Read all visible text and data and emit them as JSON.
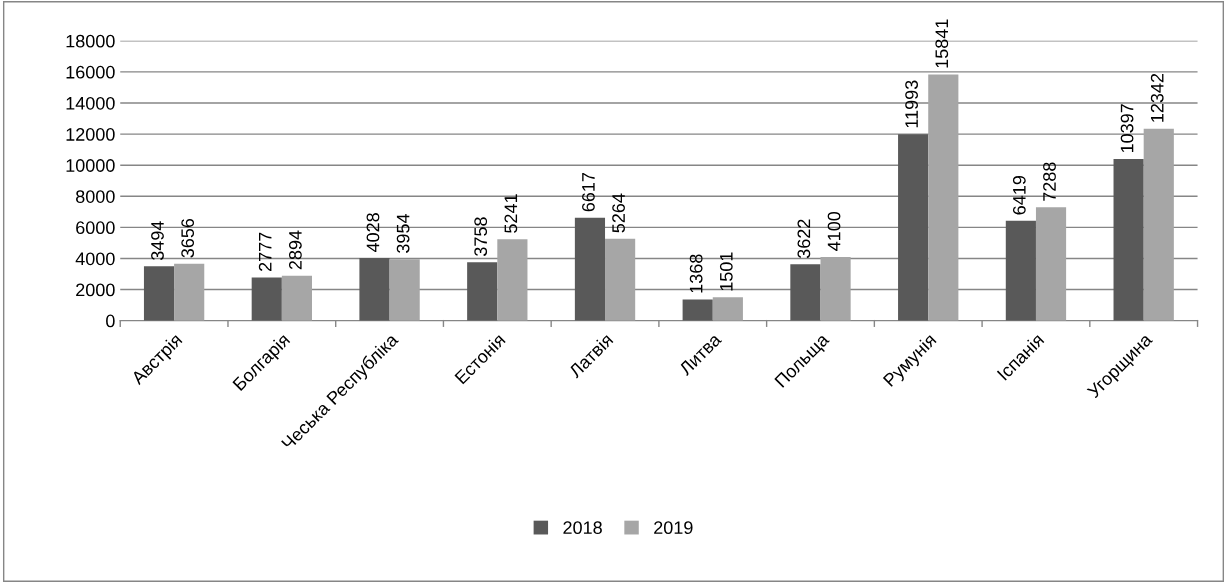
{
  "chart_data": {
    "type": "bar",
    "categories": [
      "Австрія",
      "Болгарія",
      "Чеська Республіка",
      "Естонія",
      "Латвія",
      "Литва",
      "Польща",
      "Румунія",
      "Іспанія",
      "Угорщина"
    ],
    "series": [
      {
        "name": "2018",
        "color": "#595959",
        "values": [
          3494,
          2777,
          4028,
          3758,
          6617,
          1368,
          3622,
          11993,
          6419,
          10397
        ]
      },
      {
        "name": "2019",
        "color": "#a6a6a6",
        "values": [
          3656,
          2894,
          3954,
          5241,
          5264,
          1501,
          4100,
          15841,
          7288,
          12342
        ]
      }
    ],
    "ylim": [
      0,
      18000
    ],
    "yticks": [
      0,
      2000,
      4000,
      6000,
      8000,
      10000,
      12000,
      14000,
      16000,
      18000
    ],
    "grid": "y",
    "legend": "bottom",
    "data_labels": true
  }
}
